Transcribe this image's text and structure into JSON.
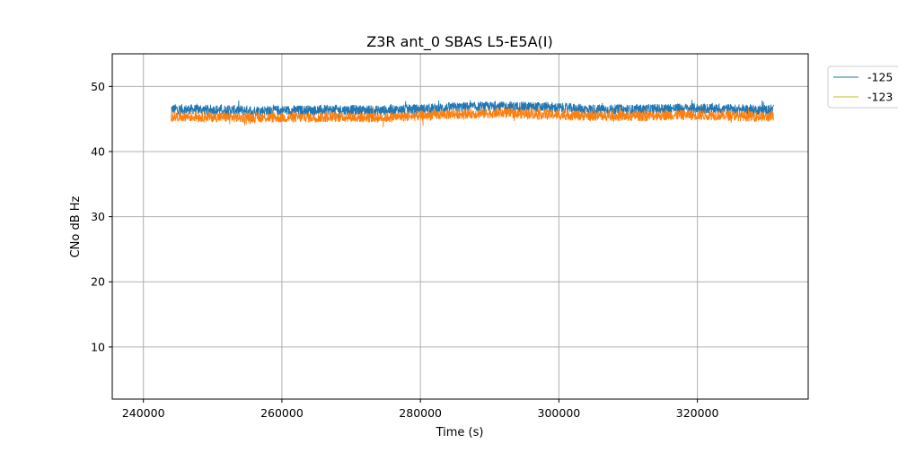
{
  "chart_data": {
    "type": "line",
    "title": "Z3R ant_0 SBAS L5-E5A(I)",
    "xlabel": "Time (s)",
    "ylabel": "CNo dB Hz",
    "xlim": [
      235500,
      336000
    ],
    "ylim": [
      2,
      55
    ],
    "x_ticks": [
      240000,
      260000,
      280000,
      300000,
      320000
    ],
    "y_ticks": [
      10,
      20,
      30,
      40,
      50
    ],
    "grid": true,
    "legend_position": "outside-top-right",
    "series": [
      {
        "name": "-125",
        "color": "#1f77b4",
        "x": [
          244000,
          250000,
          256000,
          262000,
          268000,
          274000,
          280000,
          286000,
          292000,
          298000,
          304000,
          310000,
          316000,
          322000,
          328000,
          331000
        ],
        "y": [
          46.5,
          46.4,
          46.3,
          46.3,
          46.4,
          46.3,
          46.5,
          46.8,
          46.9,
          46.8,
          46.5,
          46.4,
          46.6,
          46.6,
          46.4,
          46.4
        ]
      },
      {
        "name": "-123",
        "color": "#ff7f0e",
        "x": [
          244000,
          250000,
          256000,
          262000,
          268000,
          274000,
          280000,
          286000,
          292000,
          298000,
          304000,
          310000,
          316000,
          322000,
          328000,
          331000
        ],
        "y": [
          45.4,
          45.3,
          45.2,
          45.2,
          45.3,
          45.2,
          45.5,
          45.8,
          45.9,
          45.7,
          45.5,
          45.4,
          45.6,
          45.6,
          45.4,
          45.3
        ]
      }
    ],
    "legend_line_color_2": "#bcbd22"
  }
}
